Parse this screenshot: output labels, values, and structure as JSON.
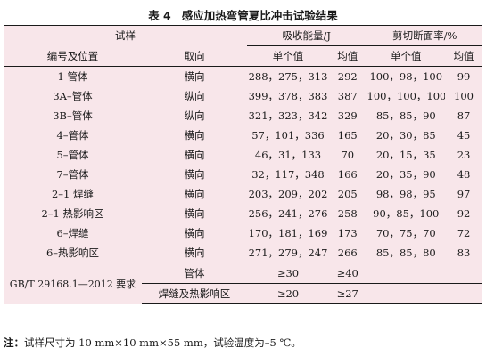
{
  "caption": {
    "number": "表 4",
    "title": "感应加热弯管夏比冲击试验结果"
  },
  "headers": {
    "sample": "试样",
    "absorbed_energy": "吸收能量/J",
    "shear_area": "剪切断面率/%",
    "id_position": "编号及位置",
    "direction": "取向",
    "single_value": "单个值",
    "mean_value": "均值"
  },
  "rows": [
    {
      "id": "1 管体",
      "direction": "横向",
      "energy_single": "288，275，313",
      "energy_mean": "292",
      "shear_single": "100，98，100",
      "shear_mean": "99"
    },
    {
      "id": "3A–管体",
      "direction": "纵向",
      "energy_single": "399，378，383",
      "energy_mean": "387",
      "shear_single": "100，100，100",
      "shear_mean": "100"
    },
    {
      "id": "3B–管体",
      "direction": "纵向",
      "energy_single": "321，323，342",
      "energy_mean": "329",
      "shear_single": "85，85，90",
      "shear_mean": "87"
    },
    {
      "id": "4–管体",
      "direction": "横向",
      "energy_single": "57，101，336",
      "energy_mean": "165",
      "shear_single": "20，30，85",
      "shear_mean": "45"
    },
    {
      "id": "5–管体",
      "direction": "横向",
      "energy_single": "46，31，133",
      "energy_mean": "70",
      "shear_single": "20，15，35",
      "shear_mean": "23"
    },
    {
      "id": "7–管体",
      "direction": "横向",
      "energy_single": "32，117，348",
      "energy_mean": "166",
      "shear_single": "20，35，90",
      "shear_mean": "48"
    },
    {
      "id": "2–1 焊缝",
      "direction": "横向",
      "energy_single": "203，209，202",
      "energy_mean": "205",
      "shear_single": "98，98，95",
      "shear_mean": "97"
    },
    {
      "id": "2–1 热影响区",
      "direction": "横向",
      "energy_single": "256，241，276",
      "energy_mean": "258",
      "shear_single": "90，85，100",
      "shear_mean": "92"
    },
    {
      "id": "6–焊缝",
      "direction": "横向",
      "energy_single": "170，181，169",
      "energy_mean": "173",
      "shear_single": "70，75，70",
      "shear_mean": "72"
    },
    {
      "id": "6–热影响区",
      "direction": "横向",
      "energy_single": "271，279，247",
      "energy_mean": "266",
      "shear_single": "85，85，80",
      "shear_mean": "83"
    }
  ],
  "standard": {
    "label": "GB/T 29168.1—2012 要求",
    "rows": [
      {
        "location": "管体",
        "energy_single": "≥30",
        "energy_mean": "≥40"
      },
      {
        "location": "焊缝及热影响区",
        "energy_single": "≥20",
        "energy_mean": "≥27"
      }
    ]
  },
  "note": {
    "label": "注：",
    "text": "试样尺寸为 10 mm×10 mm×55 mm，试验温度为–5 ℃。"
  }
}
